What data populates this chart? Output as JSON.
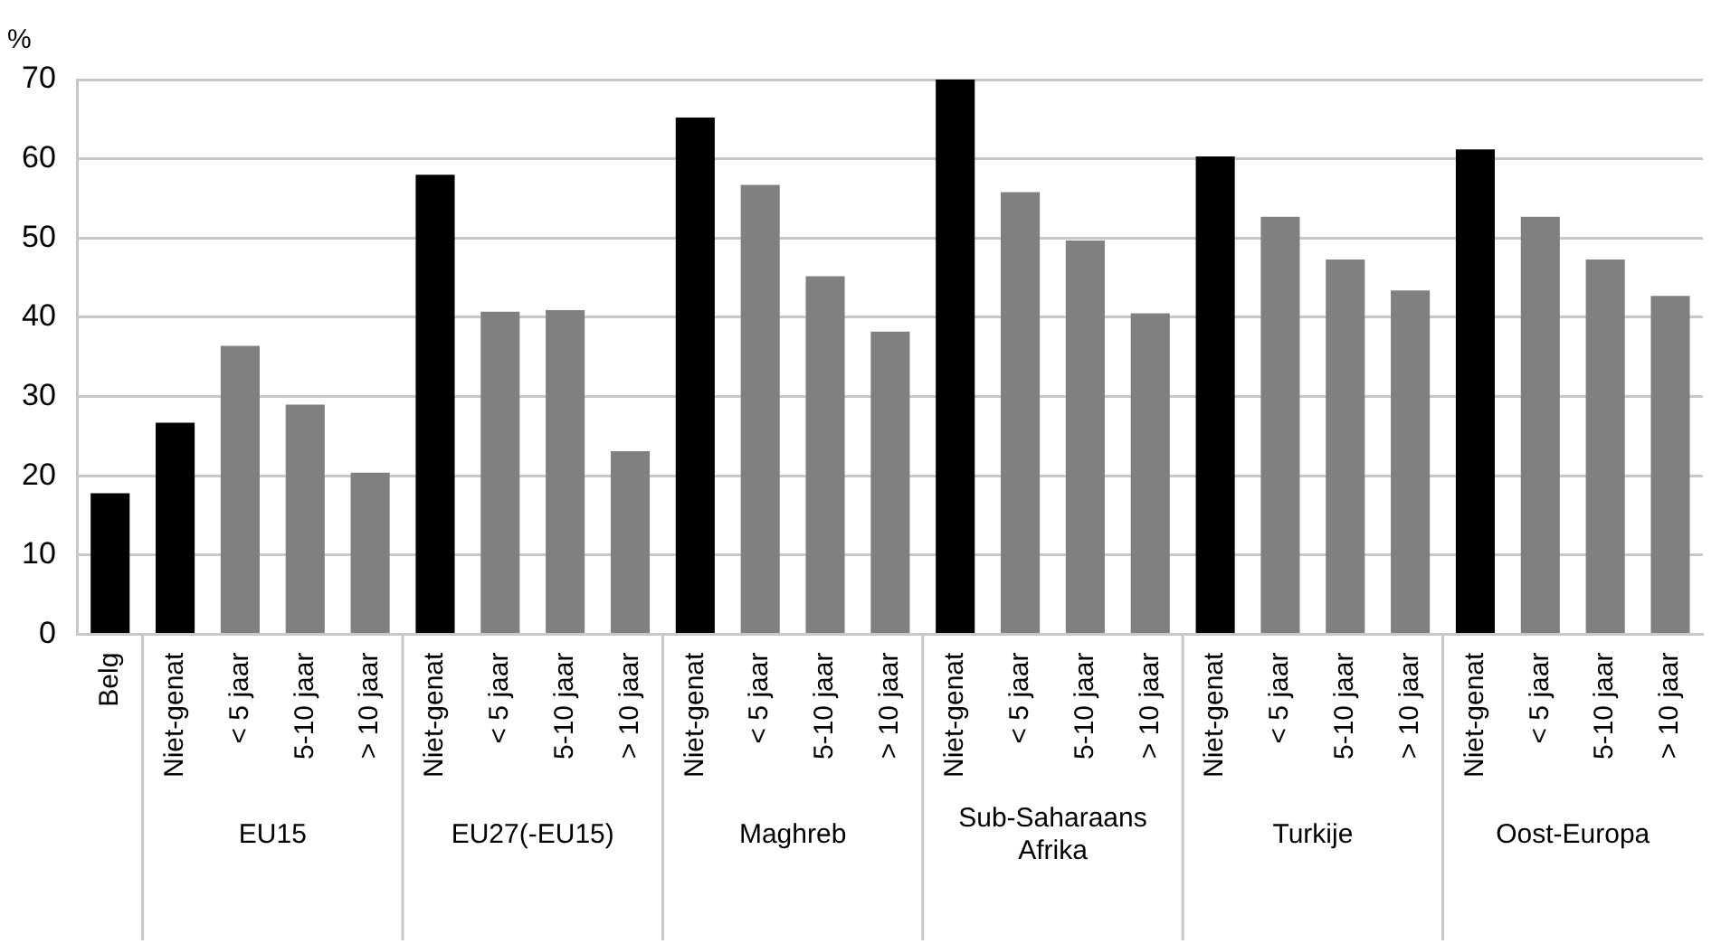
{
  "chart_data": {
    "type": "bar",
    "ylabel": "%",
    "categories": [
      "Belg",
      "Niet-genat",
      "< 5 jaar",
      "5-10 jaar",
      "> 10 jaar",
      "Niet-genat",
      "< 5 jaar",
      "5-10 jaar",
      "> 10 jaar",
      "Niet-genat",
      "< 5 jaar",
      "5-10 jaar",
      "> 10 jaar",
      "Niet-genat",
      "< 5 jaar",
      "5-10 jaar",
      "> 10 jaar",
      "Niet-genat",
      "< 5 jaar",
      "5-10 jaar",
      "> 10 jaar",
      "Niet-genat",
      "< 5 jaar",
      "5-10 jaar",
      "> 10 jaar"
    ],
    "values": [
      17.8,
      26.7,
      36.4,
      29.0,
      20.4,
      58.0,
      40.7,
      40.9,
      23.1,
      65.2,
      56.7,
      45.2,
      38.2,
      70,
      55.8,
      49.7,
      40.5,
      60.3,
      52.7,
      47.3,
      43.4,
      61.2,
      52.7,
      47.3,
      42.7
    ],
    "colors": [
      "#000000",
      "#000000",
      "#808080",
      "#808080",
      "#808080",
      "#000000",
      "#808080",
      "#808080",
      "#808080",
      "#000000",
      "#808080",
      "#808080",
      "#808080",
      "#000000",
      "#808080",
      "#808080",
      "#808080",
      "#000000",
      "#808080",
      "#808080",
      "#808080",
      "#000000",
      "#808080",
      "#808080",
      "#808080"
    ],
    "annotations": [
      "EU15",
      "EU27(-EU15)",
      "Maghreb",
      "Sub-Saharaans Afrika",
      "Turkije",
      "Oost-Europa"
    ],
    "ylim": [
      0,
      70
    ],
    "yticks": [
      0,
      10,
      20,
      30,
      40,
      50,
      60,
      70
    ],
    "grid": "y",
    "legend": false
  }
}
